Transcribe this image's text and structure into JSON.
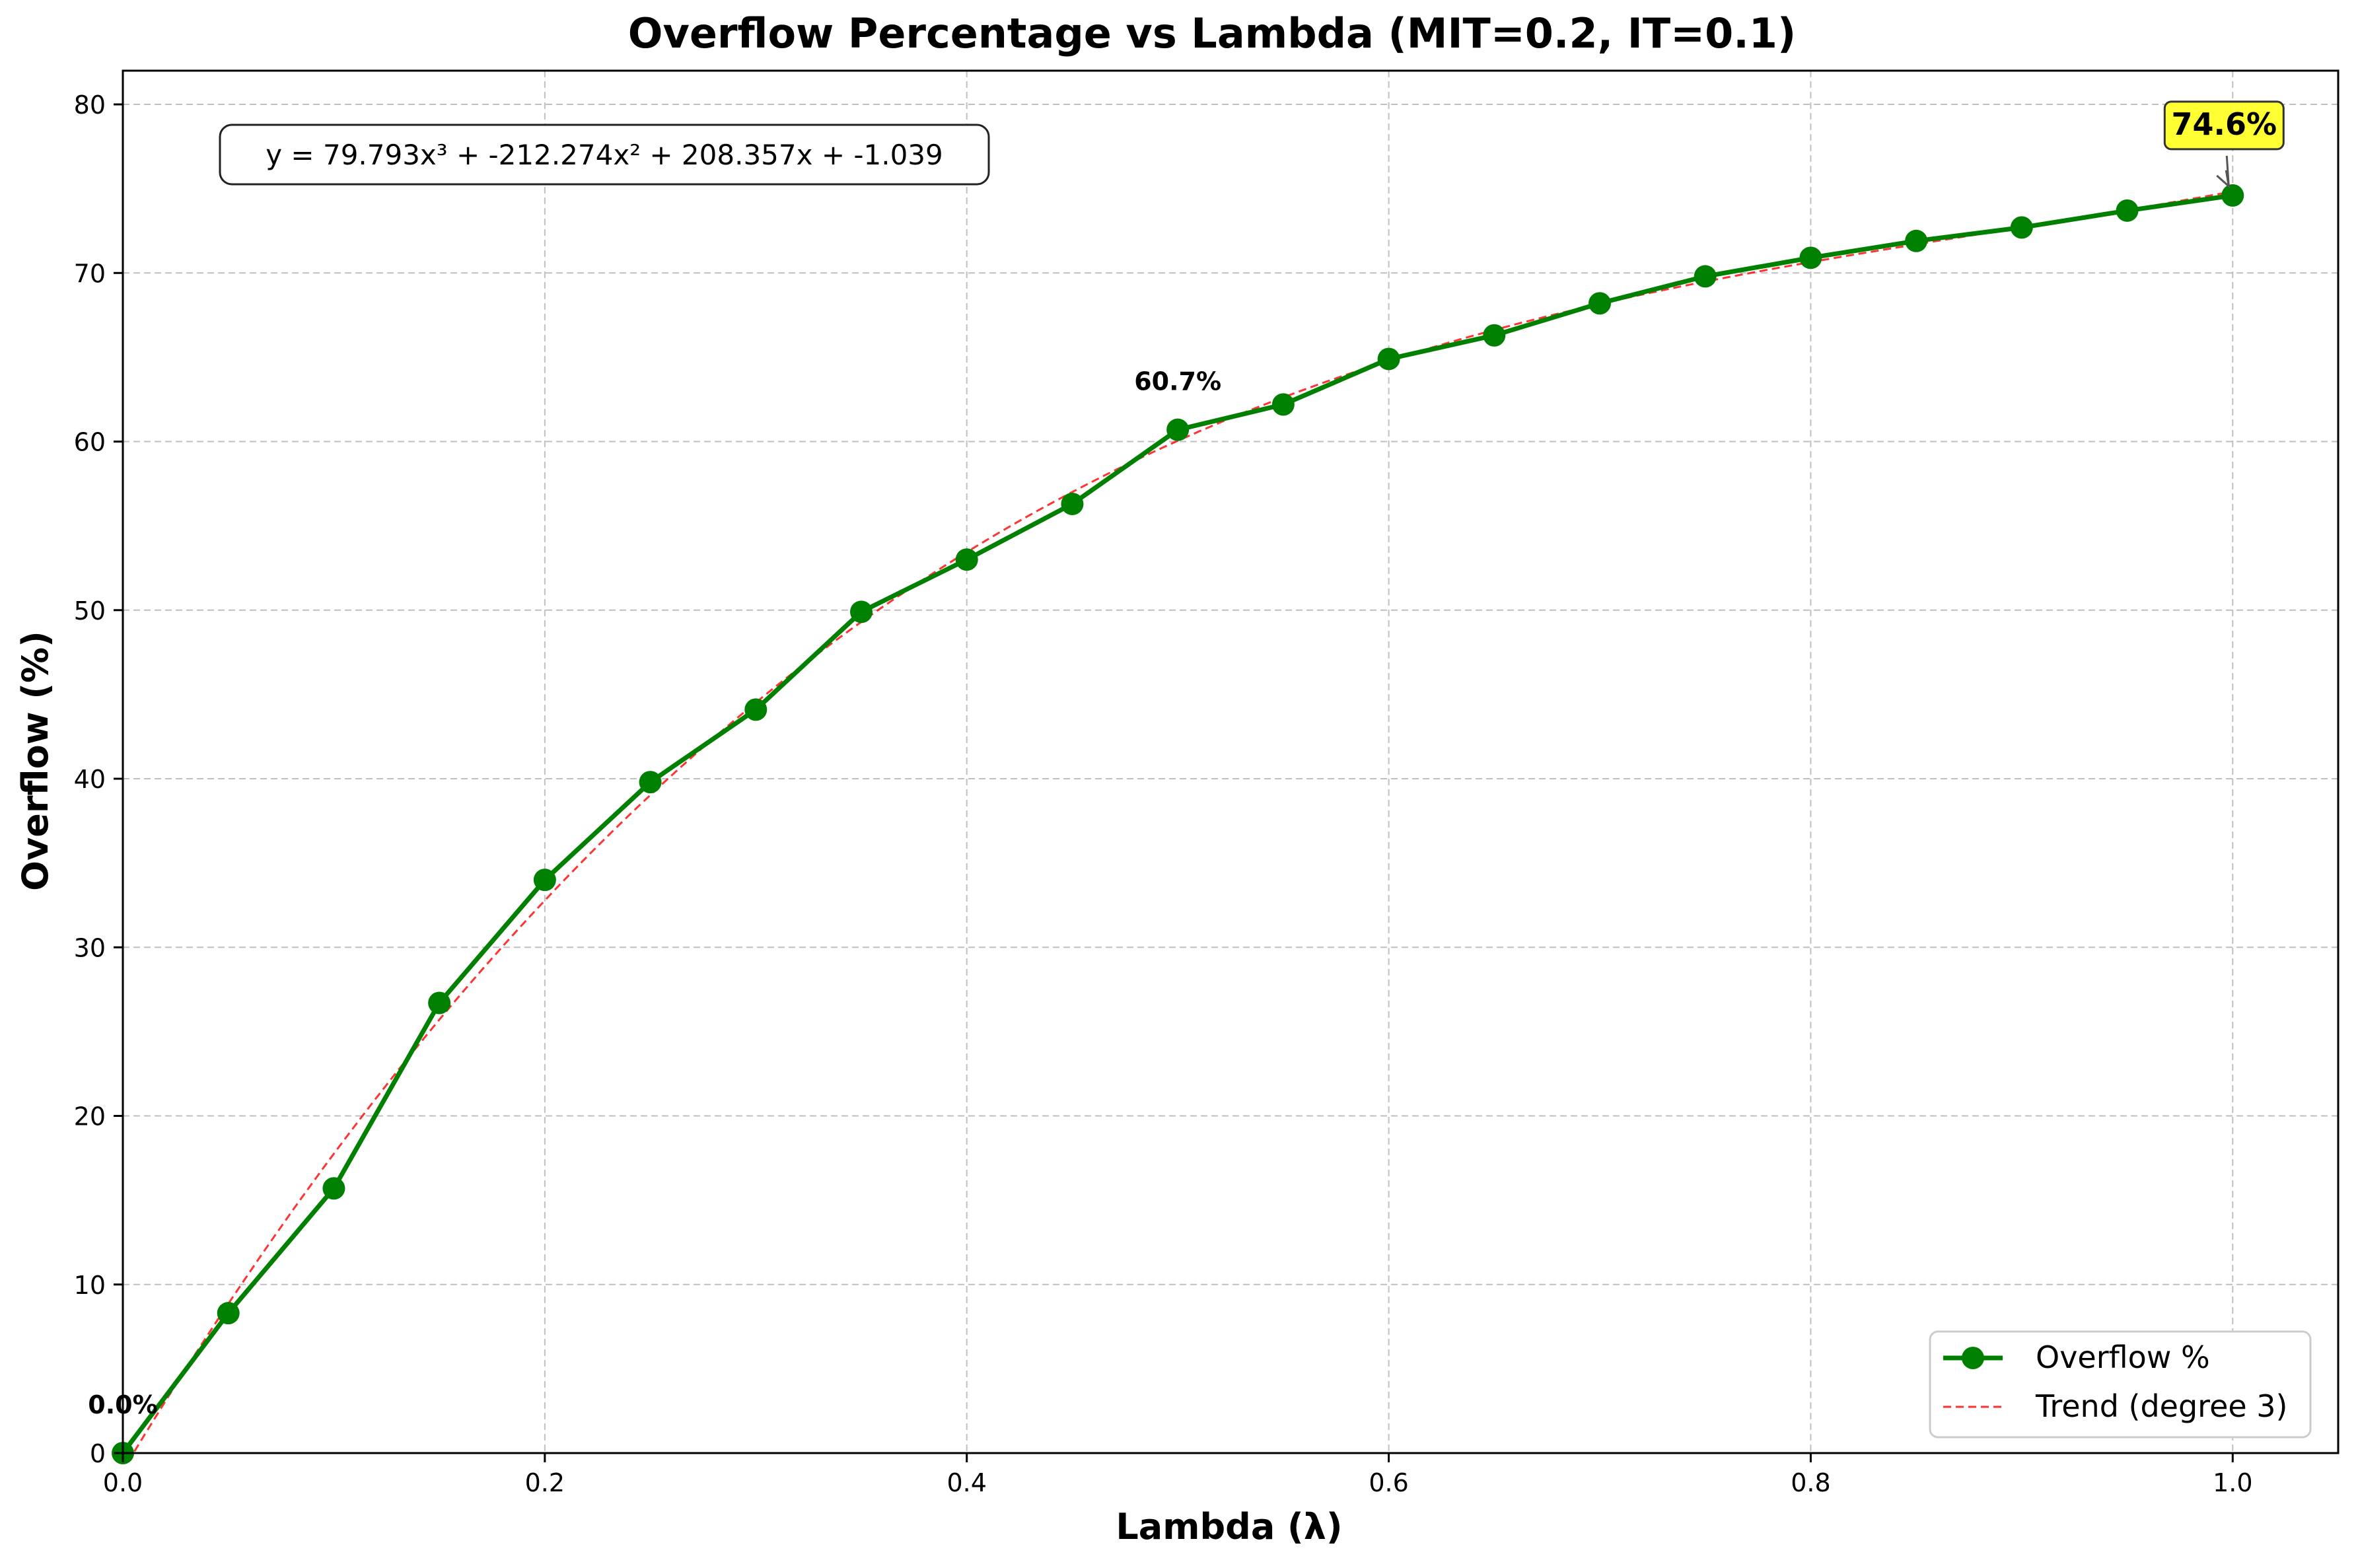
{
  "chart_data": {
    "type": "line",
    "title": "Overflow Percentage vs Lambda (MIT=0.2, IT=0.1)",
    "xlabel": "Lambda (λ)",
    "ylabel": "Overflow (%)",
    "xlim": [
      0,
      1.05
    ],
    "ylim": [
      0,
      82
    ],
    "xticks": [
      0.0,
      0.2,
      0.4,
      0.6,
      0.8,
      1.0
    ],
    "xtick_labels": [
      "0.0",
      "0.2",
      "0.4",
      "0.6",
      "0.8",
      "1.0"
    ],
    "yticks": [
      0,
      10,
      20,
      30,
      40,
      50,
      60,
      70,
      80
    ],
    "ytick_labels": [
      "0",
      "10",
      "20",
      "30",
      "40",
      "50",
      "60",
      "70",
      "80"
    ],
    "grid": true,
    "legend_position": "lower-right",
    "series": [
      {
        "name": "Overflow %",
        "color": "#008000",
        "marker": "circle",
        "x": [
          0.0,
          0.05,
          0.1,
          0.15,
          0.2,
          0.25,
          0.3,
          0.35,
          0.4,
          0.45,
          0.5,
          0.55,
          0.6,
          0.65,
          0.7,
          0.75,
          0.8,
          0.85,
          0.9,
          0.95,
          1.0
        ],
        "y": [
          0.0,
          8.3,
          15.7,
          26.7,
          34.0,
          39.8,
          44.1,
          49.9,
          53.0,
          56.3,
          60.7,
          62.2,
          64.9,
          66.3,
          68.2,
          69.8,
          70.9,
          71.9,
          72.7,
          73.7,
          74.6
        ]
      }
    ],
    "trend": {
      "name": "Trend (degree 3)",
      "color": "#ff0000",
      "coefficients": [
        79.793,
        -212.274,
        208.357,
        -1.039
      ]
    },
    "equation_label": "y = 79.793x³ + -212.274x² + 208.357x + -1.039",
    "annotations": [
      {
        "x": 0.0,
        "y": 0.0,
        "text": "0.0%"
      },
      {
        "x": 0.5,
        "y": 60.7,
        "text": "60.7%"
      },
      {
        "x": 1.0,
        "y": 74.6,
        "text": "74.6%",
        "highlight": "#ffff33"
      }
    ]
  }
}
